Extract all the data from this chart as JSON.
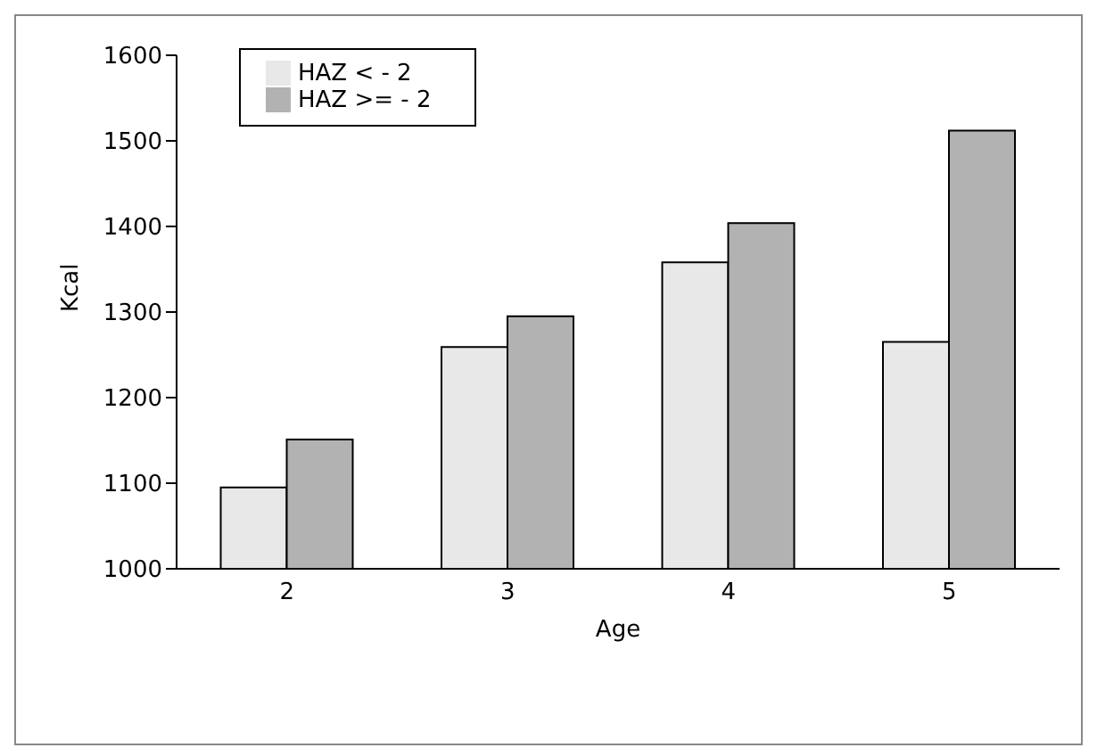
{
  "chart_data": {
    "type": "bar",
    "xlabel": "Age",
    "ylabel": "Kcal",
    "categories": [
      "2",
      "3",
      "4",
      "5"
    ],
    "series": [
      {
        "name": "HAZ < - 2",
        "color": "#e8e8e8",
        "values": [
          1095,
          1259,
          1358,
          1265
        ]
      },
      {
        "name": "HAZ >= - 2",
        "color": "#b2b2b2",
        "values": [
          1151,
          1295,
          1404,
          1512
        ]
      }
    ],
    "ylim": [
      1000,
      1600
    ],
    "yticks": [
      1000,
      1100,
      1200,
      1300,
      1400,
      1500,
      1600
    ],
    "grid": false,
    "legend": "top left"
  }
}
